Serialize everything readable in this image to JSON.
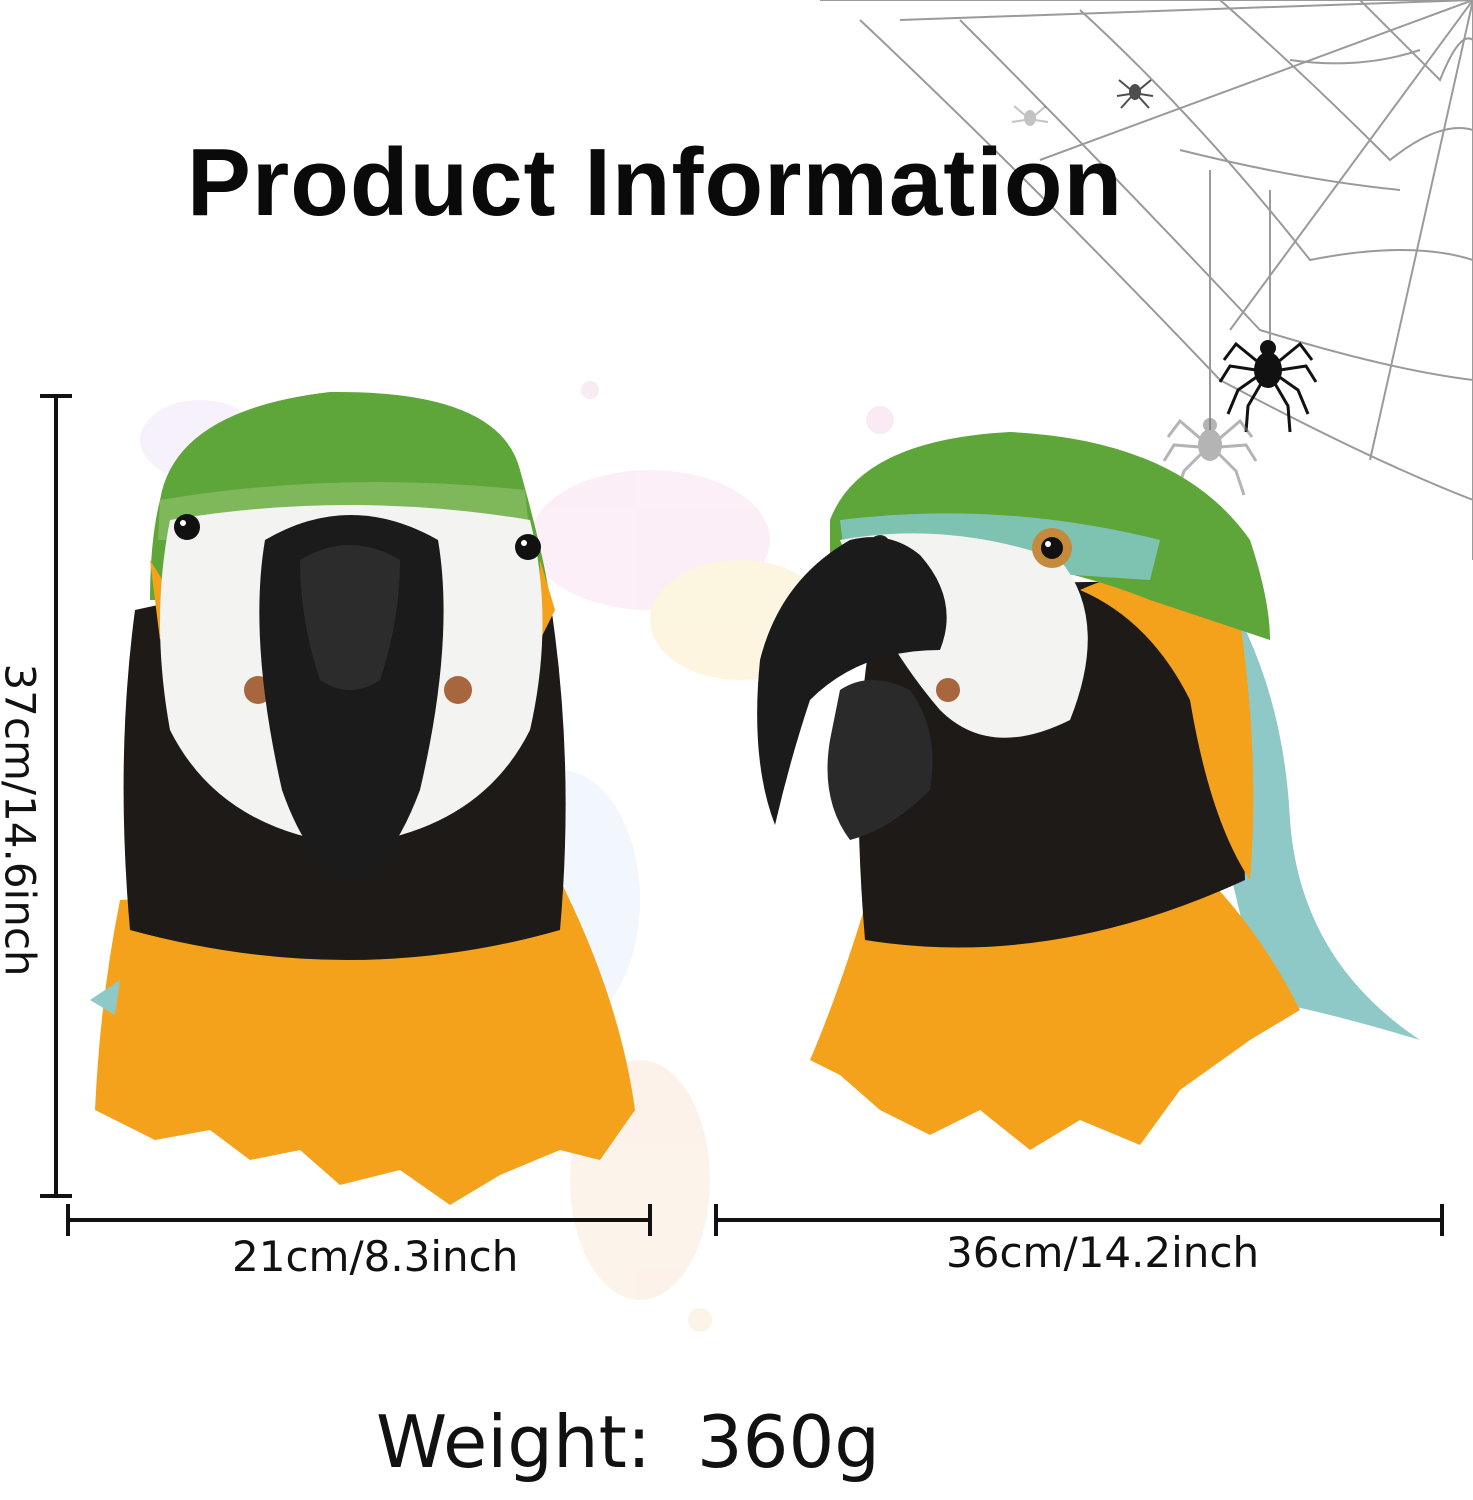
{
  "title": "Product Information",
  "height_label": "37cm/14.6inch",
  "width_front_label": "21cm/8.3inch",
  "width_side_label": "36cm/14.2inch",
  "weight_label": "Weight:  360g",
  "images": {
    "front_view": "parrot-mask-front-icon",
    "side_view": "parrot-mask-side-icon",
    "decoration": "spider-web-icon"
  },
  "colors": {
    "green": "#5ea53a",
    "orange": "#f4a21c",
    "black": "#1d1a18",
    "white": "#f3f3f1",
    "teal": "#8ec9c8"
  }
}
